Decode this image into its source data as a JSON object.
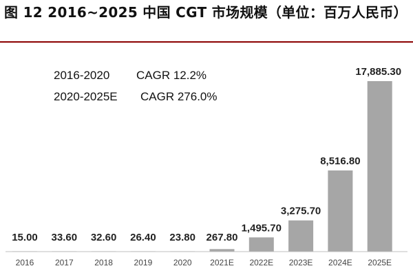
{
  "title": "图 12  2016~2025 中国 CGT 市场规模（单位：百万人民币）",
  "chart_data": {
    "type": "bar",
    "categories": [
      "2016",
      "2017",
      "2018",
      "2019",
      "2020",
      "2021E",
      "2022E",
      "2023E",
      "2024E",
      "2025E"
    ],
    "values": [
      15.0,
      33.6,
      32.6,
      26.4,
      23.8,
      267.8,
      1495.7,
      3275.7,
      8516.8,
      17885.3
    ],
    "value_labels": [
      "15.00",
      "33.60",
      "32.60",
      "26.40",
      "23.80",
      "267.80",
      "1,495.70",
      "3,275.70",
      "8,516.80",
      "17,885.30"
    ],
    "ylim": [
      0,
      17885.3
    ],
    "annotations": [
      {
        "period": "2016-2020",
        "cagr": "CAGR 12.2%"
      },
      {
        "period": "2020-2025E",
        "cagr": "CAGR 276.0%"
      }
    ],
    "bar_color": "#a6a6a6",
    "grid": false,
    "legend": "none"
  }
}
